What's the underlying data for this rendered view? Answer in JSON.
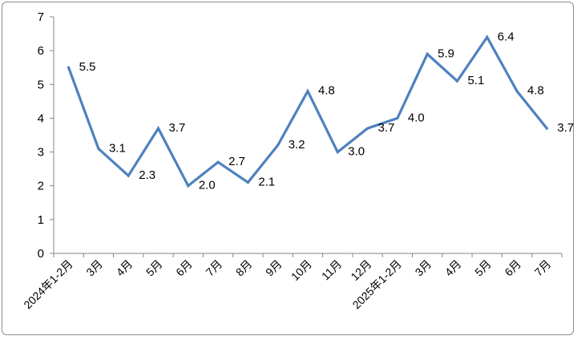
{
  "chart_data": {
    "type": "line",
    "categories": [
      "2024年1-2月",
      "3月",
      "4月",
      "5月",
      "6月",
      "7月",
      "8月",
      "9月",
      "10月",
      "11月",
      "12月",
      "2025年1-2月",
      "3月",
      "4月",
      "5月",
      "6月",
      "7月"
    ],
    "series": [
      {
        "values": [
          5.5,
          3.1,
          2.3,
          3.7,
          2.0,
          2.7,
          2.1,
          3.2,
          4.8,
          3.0,
          3.7,
          4.0,
          5.9,
          5.1,
          6.4,
          4.8,
          3.7
        ],
        "labels": [
          "5.5",
          "3.1",
          "2.3",
          "3.7",
          "2.0",
          "2.7",
          "2.1",
          "3.2",
          "4.8",
          "3.0",
          "3.7",
          "4.0",
          "5.9",
          "5.1",
          "6.4",
          "4.8",
          "3.7"
        ]
      }
    ],
    "ylim": [
      0,
      7
    ],
    "yticks": [
      "0",
      "1",
      "2",
      "3",
      "4",
      "5",
      "6",
      "7"
    ],
    "grid": false,
    "colors": {
      "line": "#4f81bd",
      "axis": "#868686"
    }
  }
}
